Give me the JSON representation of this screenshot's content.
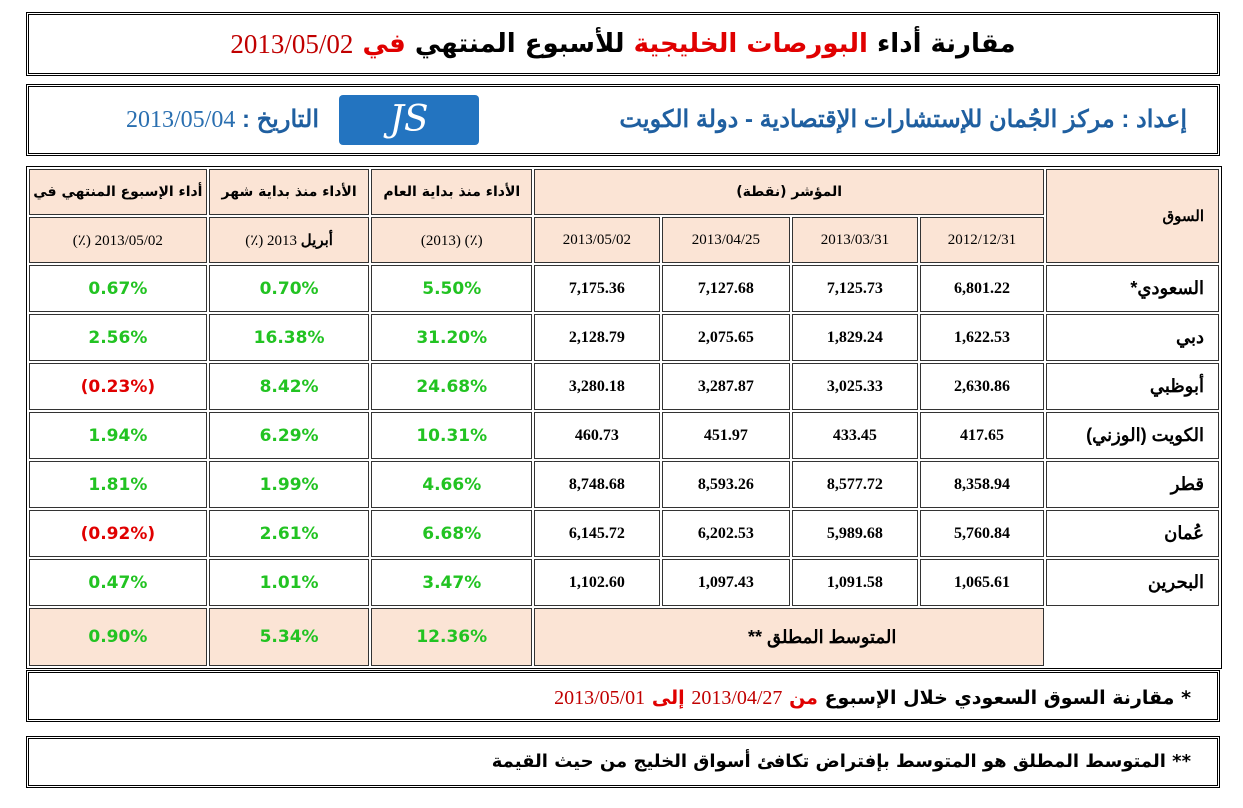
{
  "title": {
    "part1": "مقارنة أداء",
    "part2": "البورصات الخليجية",
    "part3": "للأسبوع المنتهي",
    "part4": "في",
    "date": "2013/05/02"
  },
  "prep": {
    "label": "إعداد : مركز الجُمان للإستشارات الإقتصادية - دولة الكويت",
    "date_label": "التاريخ :",
    "date": "2013/05/04",
    "logo": "JS"
  },
  "headers": {
    "market": "السوق",
    "index": "المؤشر (نقطة)",
    "dates": [
      "2012/12/31",
      "2013/03/31",
      "2013/04/25",
      "2013/05/02"
    ],
    "ytd": "الأداء منذ بداية العام",
    "ytd_sub": "(٪) (2013)",
    "month": "الأداء منذ بداية شهر",
    "month_sub_bold": "أبريل",
    "month_sub": "2013 (٪)",
    "week": "أداء الإسبوع المنتهي في",
    "week_sub": "2013/05/02 (٪)"
  },
  "rows": [
    {
      "market": "السعودي*",
      "v": [
        "6,801.22",
        "7,125.73",
        "7,127.68",
        "7,175.36"
      ],
      "ytd": "5.50%",
      "month": "0.70%",
      "week": "0.67%"
    },
    {
      "market": "دبي",
      "v": [
        "1,622.53",
        "1,829.24",
        "2,075.65",
        "2,128.79"
      ],
      "ytd": "31.20%",
      "month": "16.38%",
      "week": "2.56%"
    },
    {
      "market": "أبوظبي",
      "v": [
        "2,630.86",
        "3,025.33",
        "3,287.87",
        "3,280.18"
      ],
      "ytd": "24.68%",
      "month": "8.42%",
      "week": "(0.23%)"
    },
    {
      "market": "الكويت (الوزني)",
      "v": [
        "417.65",
        "433.45",
        "451.97",
        "460.73"
      ],
      "ytd": "10.31%",
      "month": "6.29%",
      "week": "1.94%"
    },
    {
      "market": "قطر",
      "v": [
        "8,358.94",
        "8,577.72",
        "8,593.26",
        "8,748.68"
      ],
      "ytd": "4.66%",
      "month": "1.99%",
      "week": "1.81%"
    },
    {
      "market": "عُمان",
      "v": [
        "5,760.84",
        "5,989.68",
        "6,202.53",
        "6,145.72"
      ],
      "ytd": "6.68%",
      "month": "2.61%",
      "week": "(0.92%)"
    },
    {
      "market": "البحرين",
      "v": [
        "1,065.61",
        "1,091.58",
        "1,097.43",
        "1,102.60"
      ],
      "ytd": "3.47%",
      "month": "1.01%",
      "week": "0.47%"
    }
  ],
  "average": {
    "label": "المتوسط المطلق **",
    "ytd": "12.36%",
    "month": "5.34%",
    "week": "0.90%"
  },
  "note1": {
    "a": "* مقارنة السوق السعودي خلال الإسبوع",
    "from": "من",
    "d1": "2013/04/27",
    "to": "إلى",
    "d2": "2013/05/01"
  },
  "note2": "** المتوسط المطلق هو المتوسط بإفتراض تكافئ أسواق الخليج من حيث القيمة"
}
